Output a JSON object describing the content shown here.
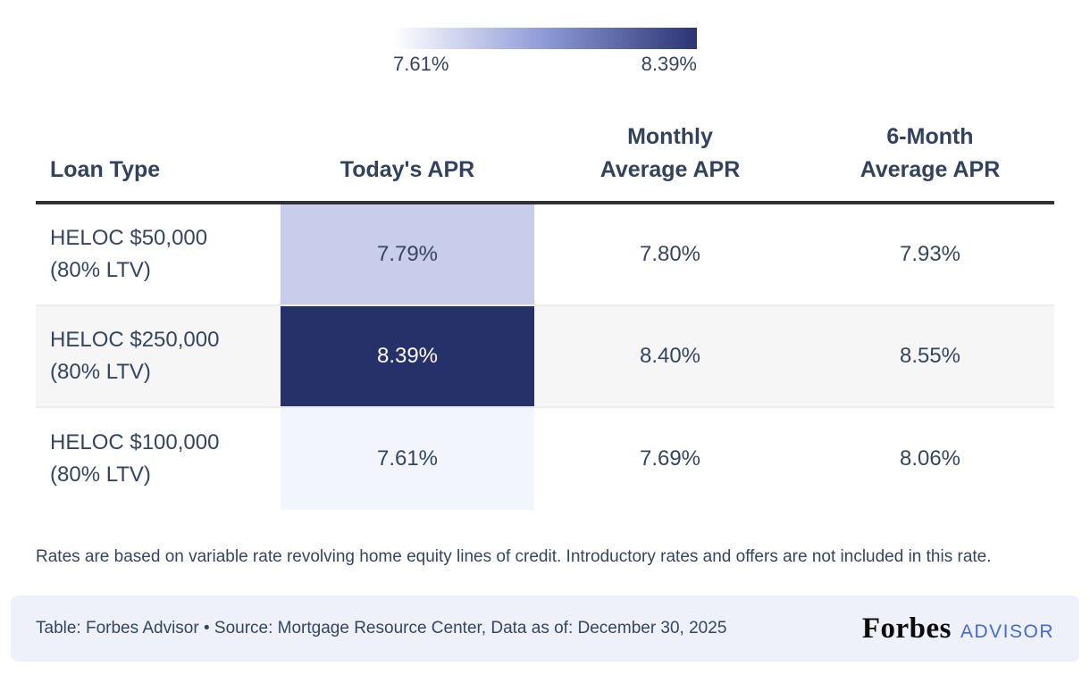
{
  "legend": {
    "min_label": "7.61%",
    "max_label": "8.39%",
    "gradient_start": "#ffffff",
    "gradient_mid": "#8e9ad8",
    "gradient_end": "#2b3474"
  },
  "table": {
    "headers": [
      "Loan Type",
      "Today's APR",
      "Monthly\nAverage APR",
      "6-Month\nAverage APR"
    ],
    "rows": [
      {
        "loan_type": "HELOC $50,000",
        "loan_type_sub": "(80% LTV)",
        "todays_apr": "7.79%",
        "monthly_avg_apr": "7.80%",
        "six_month_avg_apr": "7.93%",
        "row_bg": "#ffffff",
        "apr_cell_bg": "#c7cdeb",
        "apr_cell_text": "#36455f"
      },
      {
        "loan_type": "HELOC $250,000",
        "loan_type_sub": "(80% LTV)",
        "todays_apr": "8.39%",
        "monthly_avg_apr": "8.40%",
        "six_month_avg_apr": "8.55%",
        "row_bg": "#f6f6f7",
        "apr_cell_bg": "#273169",
        "apr_cell_text": "#ffffff"
      },
      {
        "loan_type": "HELOC $100,000",
        "loan_type_sub": "(80% LTV)",
        "todays_apr": "7.61%",
        "monthly_avg_apr": "7.69%",
        "six_month_avg_apr": "8.06%",
        "row_bg": "#ffffff",
        "apr_cell_bg": "#f2f5fc",
        "apr_cell_text": "#36455f"
      }
    ]
  },
  "footnote": "Rates are based on variable rate revolving home equity lines of credit. Introductory rates and offers are not included in this rate.",
  "footer": {
    "attribution": "Table: Forbes Advisor • Source: Mortgage Resource Center, Data as of: December 30, 2025",
    "brand": "Forbes",
    "brand_suffix": "ADVISOR"
  },
  "chart_data": {
    "type": "table",
    "columns": [
      "Loan Type",
      "Today's APR",
      "Monthly Average APR",
      "6-Month Average APR"
    ],
    "rows": [
      [
        "HELOC $50,000 (80% LTV)",
        "7.79%",
        "7.80%",
        "7.93%"
      ],
      [
        "HELOC $250,000 (80% LTV)",
        "8.39%",
        "8.40%",
        "8.55%"
      ],
      [
        "HELOC $100,000 (80% LTV)",
        "7.61%",
        "7.69%",
        "8.06%"
      ]
    ],
    "heatmap_column": "Today's APR",
    "heatmap_range": [
      7.61,
      8.39
    ],
    "legend_position": "top"
  }
}
